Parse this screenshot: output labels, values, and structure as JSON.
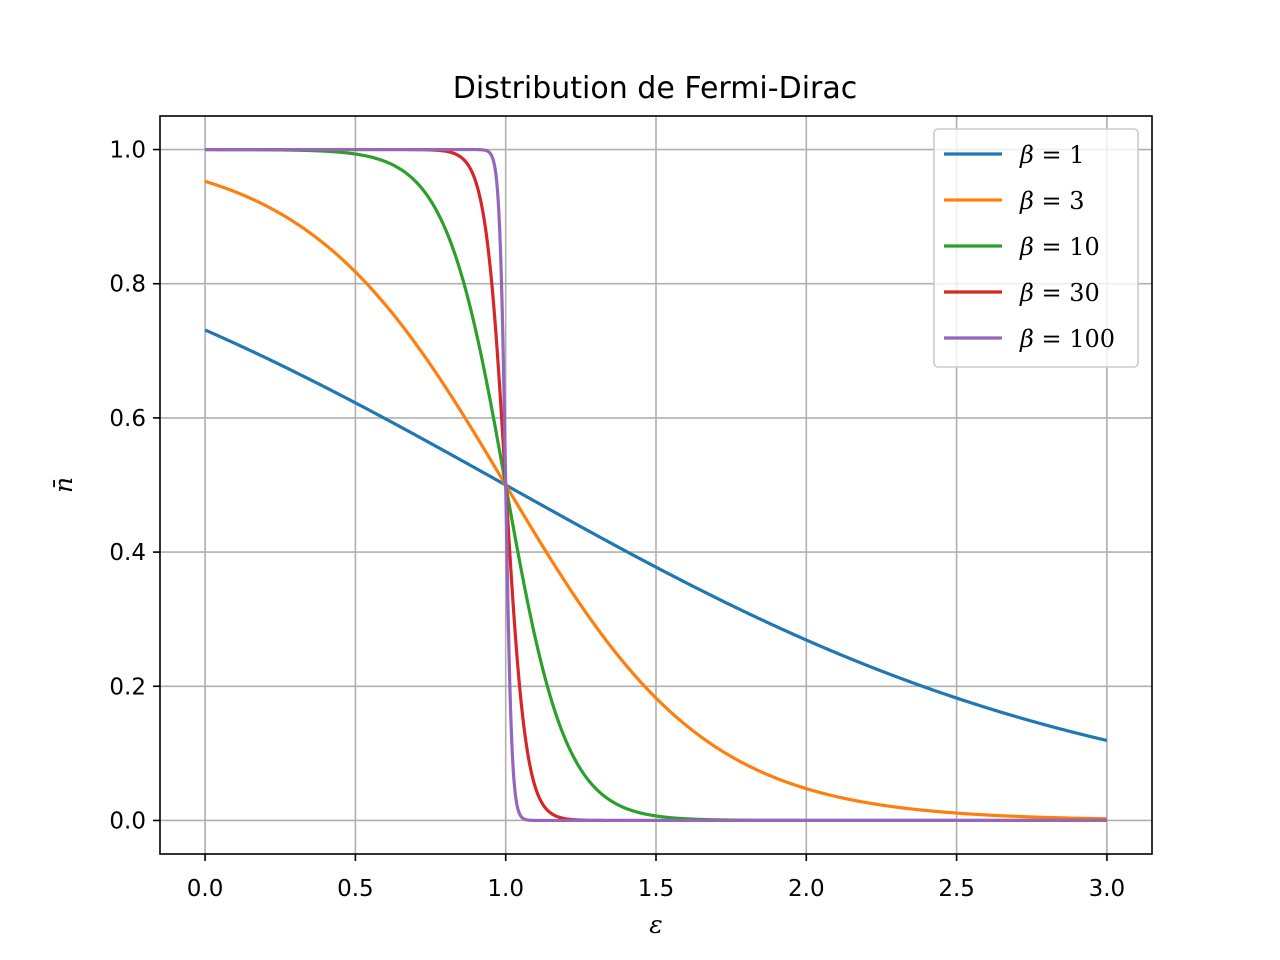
{
  "chart_data": {
    "type": "line",
    "title": "Distribution de Fermi-Dirac",
    "xlabel": "ε",
    "ylabel": "n̄",
    "xlim": [
      -0.15,
      3.15
    ],
    "ylim": [
      -0.05,
      1.05
    ],
    "xticks": [
      "0.0",
      "0.5",
      "1.0",
      "1.5",
      "2.0",
      "2.5",
      "3.0"
    ],
    "yticks": [
      "0.0",
      "0.2",
      "0.4",
      "0.6",
      "0.8",
      "1.0"
    ],
    "grid": true,
    "legend_position": "top-right",
    "x_range": [
      0,
      3
    ],
    "mu": 1,
    "series": [
      {
        "name": "β = 1",
        "param": "β",
        "value": "1",
        "beta": 1,
        "color": "#1f77b4",
        "x": [
          0,
          0.5,
          1,
          1.5,
          2,
          2.5,
          3
        ],
        "y": [
          0.731,
          0.622,
          0.5,
          0.378,
          0.269,
          0.182,
          0.119
        ]
      },
      {
        "name": "β = 3",
        "param": "β",
        "value": "3",
        "beta": 3,
        "color": "#ff7f0e",
        "x": [
          0,
          0.5,
          1,
          1.5,
          2,
          2.5,
          3
        ],
        "y": [
          0.953,
          0.818,
          0.5,
          0.182,
          0.047,
          0.011,
          0.002
        ]
      },
      {
        "name": "β = 10",
        "param": "β",
        "value": "10",
        "beta": 10,
        "color": "#2ca02c",
        "x": [
          0,
          0.5,
          1,
          1.5,
          2,
          2.5,
          3
        ],
        "y": [
          1.0,
          0.993,
          0.5,
          0.007,
          0.0,
          0.0,
          0.0
        ]
      },
      {
        "name": "β = 30",
        "param": "β",
        "value": "30",
        "beta": 30,
        "color": "#d62728",
        "x": [
          0,
          0.5,
          1,
          1.5,
          2,
          2.5,
          3
        ],
        "y": [
          1.0,
          1.0,
          0.5,
          0.0,
          0.0,
          0.0,
          0.0
        ]
      },
      {
        "name": "β = 100",
        "param": "β",
        "value": "100",
        "beta": 100,
        "color": "#9467bd",
        "x": [
          0,
          0.5,
          1,
          1.5,
          2,
          2.5,
          3
        ],
        "y": [
          1.0,
          1.0,
          0.5,
          0.0,
          0.0,
          0.0,
          0.0
        ]
      }
    ]
  }
}
